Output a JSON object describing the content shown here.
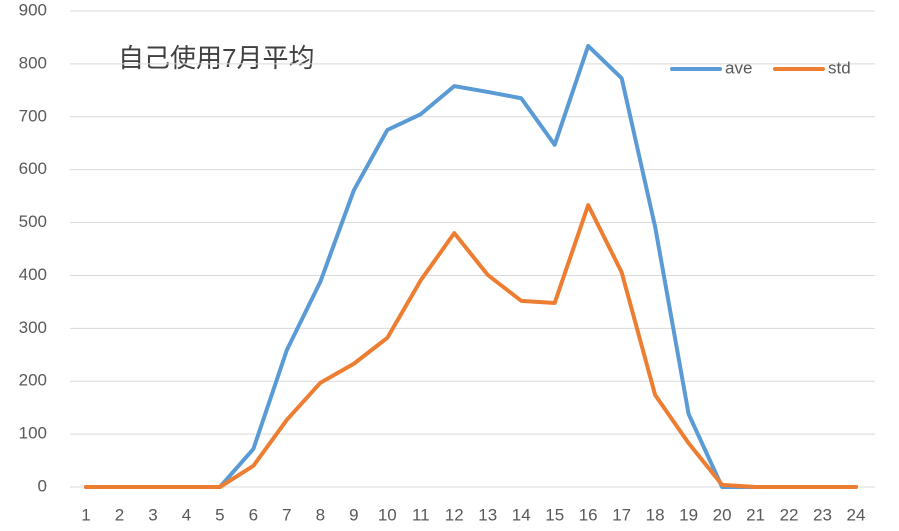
{
  "chart_data": {
    "type": "line",
    "title": "自己使用7月平均",
    "categories": [
      "1",
      "2",
      "3",
      "4",
      "5",
      "6",
      "7",
      "8",
      "9",
      "10",
      "11",
      "12",
      "13",
      "14",
      "15",
      "16",
      "17",
      "18",
      "19",
      "20",
      "21",
      "22",
      "23",
      "24"
    ],
    "series": [
      {
        "name": "ave",
        "color": "#5b9bd5",
        "values": [
          0,
          0,
          0,
          0,
          0,
          72,
          259,
          388,
          561,
          675,
          705,
          758,
          747,
          735,
          647,
          834,
          773,
          492,
          138,
          0,
          0,
          0,
          0,
          0
        ]
      },
      {
        "name": "std",
        "color": "#ed7d31",
        "values": [
          0,
          0,
          0,
          0,
          0,
          40,
          127,
          197,
          233,
          282,
          391,
          480,
          401,
          352,
          348,
          533,
          406,
          174,
          83,
          4,
          0,
          0,
          0,
          0
        ]
      }
    ],
    "ylim": [
      0,
      900
    ],
    "yticks": [
      0,
      100,
      200,
      300,
      400,
      500,
      600,
      700,
      800,
      900
    ],
    "grid": true,
    "legend": "top-right"
  }
}
